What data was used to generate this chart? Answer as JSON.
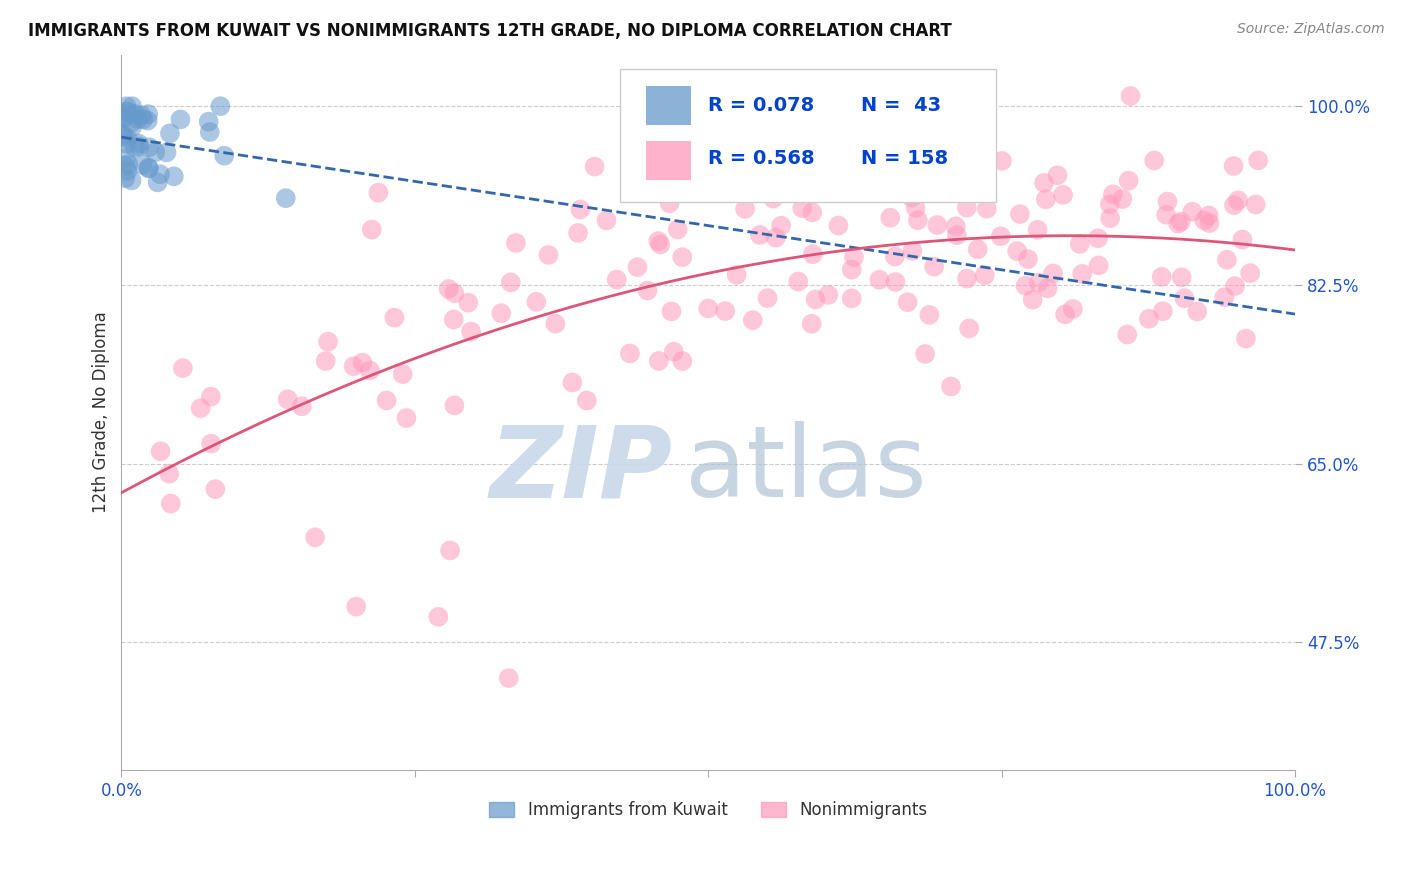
{
  "title": "IMMIGRANTS FROM KUWAIT VS NONIMMIGRANTS 12TH GRADE, NO DIPLOMA CORRELATION CHART",
  "source": "Source: ZipAtlas.com",
  "ylabel": "12th Grade, No Diploma",
  "y_ticks": [
    0.475,
    0.65,
    0.825,
    1.0
  ],
  "y_tick_labels": [
    "47.5%",
    "65.0%",
    "82.5%",
    "100.0%"
  ],
  "blue_R": 0.078,
  "blue_N": 43,
  "pink_R": 0.568,
  "pink_N": 158,
  "blue_color": "#6699cc",
  "pink_color": "#ff99bb",
  "blue_line_color": "#3366aa",
  "pink_line_color": "#dd5577",
  "legend_label_blue": "Immigrants from Kuwait",
  "legend_label_pink": "Nonimmigrants",
  "background_color": "#ffffff",
  "blue_seed": 42,
  "pink_seed": 17,
  "title_color": "#111111",
  "source_color": "#888888",
  "tick_color": "#2255cc",
  "ylabel_color": "#333333",
  "grid_color": "#cccccc",
  "watermark_zip_color": "#c8d8e8",
  "watermark_atlas_color": "#b0c4d8"
}
